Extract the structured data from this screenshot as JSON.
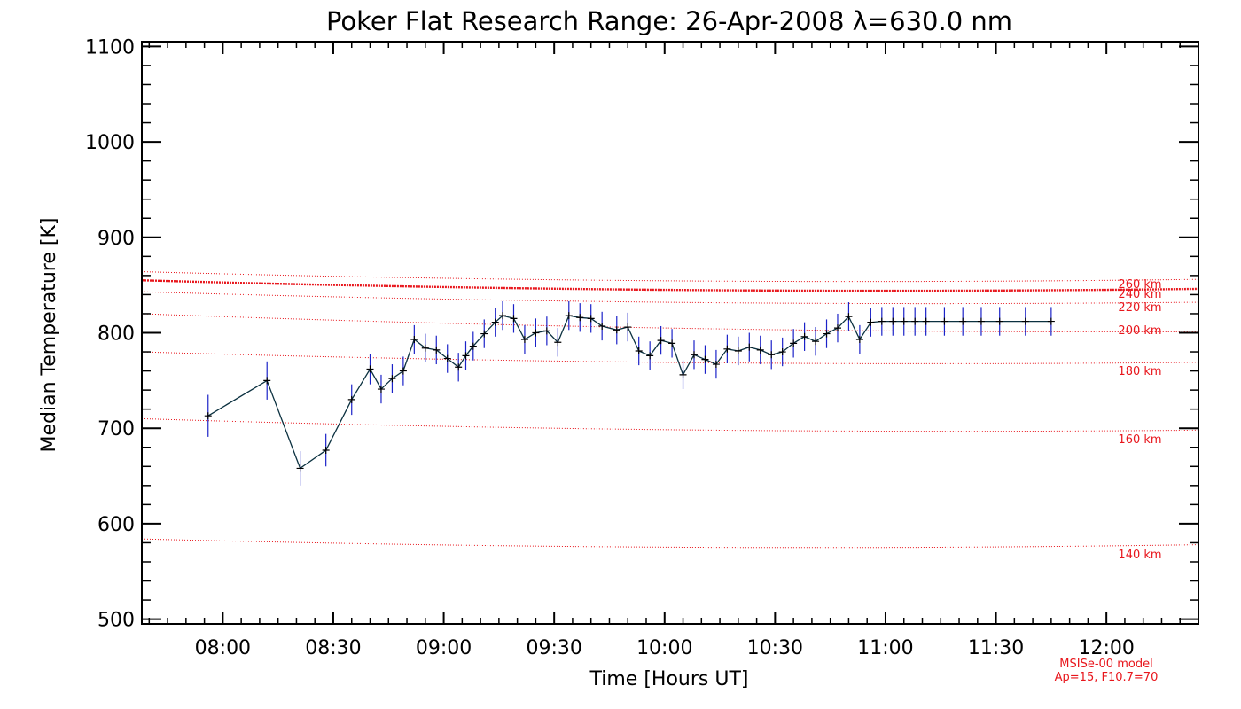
{
  "chart_data": {
    "type": "line",
    "title": "Poker Flat Research Range: 26-Apr-2008 λ=630.0 nm",
    "xlabel": "Time [Hours UT]",
    "ylabel": "Median Temperature [K]",
    "xlim": [
      "07:38",
      "12:25"
    ],
    "ylim": [
      495,
      1105
    ],
    "x_ticks": [
      "08:00",
      "08:30",
      "09:00",
      "09:30",
      "10:00",
      "10:30",
      "11:00",
      "11:30",
      "12:00"
    ],
    "y_ticks": [
      500,
      600,
      700,
      800,
      900,
      1000,
      1100
    ],
    "grid": false,
    "colors": {
      "data_line": "#0b3140",
      "error_bar": "#1b22c8",
      "model": "#e8161c",
      "axes": "#000000"
    },
    "series": [
      {
        "x": [
          "07:56",
          "08:12",
          "08:21",
          "08:28",
          "08:35",
          "08:40",
          "08:43",
          "08:46",
          "08:49",
          "08:52",
          "08:55",
          "08:58",
          "09:01",
          "09:04",
          "09:06",
          "09:08",
          "09:11",
          "09:14",
          "09:16",
          "09:19",
          "09:22",
          "09:25",
          "09:28",
          "09:31",
          "09:34",
          "09:37",
          "09:40",
          "09:43",
          "09:47",
          "09:50",
          "09:53",
          "09:56",
          "09:59",
          "10:02",
          "10:05",
          "10:08",
          "10:11",
          "10:14",
          "10:17",
          "10:20",
          "10:23",
          "10:26",
          "10:29",
          "10:32",
          "10:35",
          "10:38",
          "10:41",
          "10:44",
          "10:47",
          "10:50",
          "10:53",
          "10:56",
          "10:59",
          "11:02",
          "11:05",
          "11:08",
          "11:11",
          "11:16",
          "11:21",
          "11:26",
          "11:31",
          "11:38",
          "11:45"
        ],
        "values": [
          713,
          750,
          658,
          677,
          730,
          762,
          741,
          752,
          760,
          793,
          784,
          782,
          773,
          764,
          776,
          786,
          799,
          811,
          818,
          815,
          793,
          800,
          802,
          790,
          818,
          816,
          815,
          807,
          803,
          806,
          781,
          776,
          792,
          789,
          756,
          777,
          772,
          767,
          783,
          781,
          785,
          782,
          777,
          780,
          789,
          796,
          791,
          799,
          805,
          817,
          793,
          811,
          812,
          812,
          812,
          812,
          812,
          812,
          812,
          812,
          812,
          812,
          812
        ],
        "errors": [
          22,
          20,
          18,
          17,
          16,
          16,
          15,
          15,
          15,
          15,
          15,
          15,
          15,
          15,
          15,
          15,
          15,
          15,
          15,
          15,
          15,
          15,
          15,
          15,
          15,
          15,
          15,
          15,
          15,
          15,
          15,
          15,
          15,
          15,
          15,
          15,
          15,
          15,
          15,
          15,
          15,
          15,
          15,
          15,
          15,
          15,
          15,
          15,
          15,
          15,
          15,
          15,
          15,
          15,
          15,
          15,
          15,
          15,
          15,
          15,
          15,
          15,
          15
        ]
      }
    ],
    "model_curves": [
      {
        "label": "140 km",
        "start": 584,
        "end": 578
      },
      {
        "label": "160 km",
        "start": 710,
        "end": 698
      },
      {
        "label": "180 km",
        "start": 780,
        "end": 769
      },
      {
        "label": "200 km",
        "start": 820,
        "end": 801
      },
      {
        "label": "220 km",
        "start": 843,
        "end": 832
      },
      {
        "label": "240 km",
        "start": 855,
        "end": 846
      },
      {
        "label": "260 km",
        "start": 864,
        "end": 856
      }
    ],
    "model_note": [
      "MSISe-00 model",
      "Ap=15, F10.7=70"
    ]
  }
}
